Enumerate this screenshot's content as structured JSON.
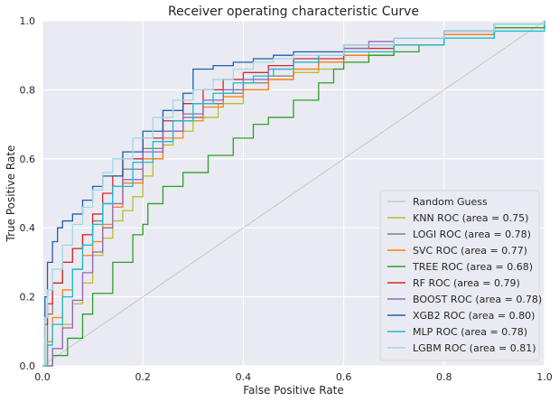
{
  "chart_data": {
    "type": "line",
    "title": "Receiver operating characteristic Curve",
    "xlabel": "False Positive Rate",
    "ylabel": "True Positive Rate",
    "xlim": [
      0,
      1
    ],
    "ylim": [
      0,
      1
    ],
    "xticks": [
      "0.0",
      "0.2",
      "0.4",
      "0.6",
      "0.8",
      "1.0"
    ],
    "yticks": [
      "0.0",
      "0.2",
      "0.4",
      "0.6",
      "0.8",
      "1.0"
    ],
    "grid": true,
    "legend_position": "lower-right",
    "background": "#eaeaf2",
    "series": [
      {
        "name": "Random Guess",
        "color": "#c8c8c8",
        "x": [
          0,
          1
        ],
        "y": [
          0,
          1
        ]
      },
      {
        "name": "KNN ROC  (area = 0.75)",
        "color": "#bcbd22",
        "x": [
          0,
          0.02,
          0.04,
          0.06,
          0.08,
          0.1,
          0.12,
          0.14,
          0.16,
          0.18,
          0.2,
          0.22,
          0.24,
          0.26,
          0.3,
          0.35,
          0.4,
          0.45,
          0.5,
          0.55,
          0.6,
          0.65,
          0.7,
          0.8,
          0.9,
          1.0
        ],
        "y": [
          0,
          0.05,
          0.12,
          0.18,
          0.24,
          0.32,
          0.37,
          0.42,
          0.45,
          0.49,
          0.55,
          0.6,
          0.64,
          0.68,
          0.72,
          0.76,
          0.8,
          0.83,
          0.85,
          0.86,
          0.88,
          0.91,
          0.93,
          0.96,
          0.98,
          1.0
        ]
      },
      {
        "name": "LOGI ROC  (area = 0.78)",
        "color": "#7f7f7f",
        "x": [
          0,
          0.01,
          0.02,
          0.04,
          0.06,
          0.08,
          0.1,
          0.12,
          0.14,
          0.16,
          0.2,
          0.24,
          0.28,
          0.32,
          0.36,
          0.4,
          0.45,
          0.5,
          0.55,
          0.6,
          0.7,
          0.8,
          0.9,
          1.0
        ],
        "y": [
          0,
          0.15,
          0.24,
          0.3,
          0.34,
          0.38,
          0.42,
          0.47,
          0.52,
          0.57,
          0.63,
          0.68,
          0.72,
          0.76,
          0.79,
          0.82,
          0.84,
          0.86,
          0.88,
          0.9,
          0.93,
          0.96,
          0.98,
          1.0
        ]
      },
      {
        "name": "SVC ROC  (area = 0.77)",
        "color": "#ff7f0e",
        "x": [
          0,
          0.01,
          0.02,
          0.04,
          0.06,
          0.08,
          0.1,
          0.12,
          0.14,
          0.16,
          0.2,
          0.24,
          0.28,
          0.32,
          0.36,
          0.4,
          0.45,
          0.5,
          0.55,
          0.6,
          0.7,
          0.8,
          0.9,
          1.0
        ],
        "y": [
          0,
          0.07,
          0.14,
          0.22,
          0.28,
          0.32,
          0.36,
          0.41,
          0.46,
          0.53,
          0.6,
          0.66,
          0.71,
          0.75,
          0.78,
          0.8,
          0.83,
          0.86,
          0.88,
          0.9,
          0.93,
          0.96,
          0.98,
          1.0
        ]
      },
      {
        "name": "TREE ROC  (area = 0.68)",
        "color": "#2ca02c",
        "x": [
          0,
          0.02,
          0.05,
          0.08,
          0.1,
          0.14,
          0.18,
          0.2,
          0.21,
          0.24,
          0.28,
          0.33,
          0.38,
          0.42,
          0.45,
          0.5,
          0.55,
          0.58,
          0.6,
          0.65,
          0.7,
          0.75,
          0.8,
          0.9,
          1.0
        ],
        "y": [
          0,
          0.03,
          0.08,
          0.15,
          0.21,
          0.3,
          0.38,
          0.41,
          0.47,
          0.52,
          0.56,
          0.61,
          0.66,
          0.7,
          0.72,
          0.77,
          0.82,
          0.86,
          0.88,
          0.9,
          0.91,
          0.93,
          0.95,
          0.98,
          1.0
        ]
      },
      {
        "name": "RF ROC  (area = 0.79)",
        "color": "#d62728",
        "x": [
          0,
          0.005,
          0.01,
          0.02,
          0.04,
          0.06,
          0.08,
          0.1,
          0.12,
          0.14,
          0.16,
          0.2,
          0.24,
          0.28,
          0.32,
          0.36,
          0.4,
          0.45,
          0.5,
          0.6,
          0.7,
          0.8,
          0.9,
          1.0
        ],
        "y": [
          0,
          0.12,
          0.18,
          0.24,
          0.3,
          0.34,
          0.38,
          0.44,
          0.5,
          0.55,
          0.6,
          0.66,
          0.71,
          0.76,
          0.8,
          0.83,
          0.85,
          0.87,
          0.89,
          0.92,
          0.95,
          0.97,
          0.99,
          1.0
        ]
      },
      {
        "name": "BOOST ROC  (area = 0.78)",
        "color": "#9467bd",
        "x": [
          0,
          0.02,
          0.04,
          0.06,
          0.08,
          0.1,
          0.12,
          0.14,
          0.16,
          0.2,
          0.24,
          0.28,
          0.32,
          0.36,
          0.4,
          0.45,
          0.5,
          0.55,
          0.6,
          0.65,
          0.7,
          0.8,
          0.9,
          1.0
        ],
        "y": [
          0,
          0.05,
          0.11,
          0.19,
          0.27,
          0.33,
          0.4,
          0.47,
          0.54,
          0.62,
          0.68,
          0.73,
          0.77,
          0.8,
          0.83,
          0.86,
          0.88,
          0.9,
          0.92,
          0.94,
          0.95,
          0.97,
          0.99,
          1.0
        ]
      },
      {
        "name": "XGB2 ROC  (area = 0.80)",
        "color": "#1f5fa8",
        "x": [
          0,
          0.005,
          0.01,
          0.02,
          0.03,
          0.04,
          0.06,
          0.08,
          0.1,
          0.12,
          0.16,
          0.2,
          0.24,
          0.28,
          0.3,
          0.34,
          0.38,
          0.42,
          0.46,
          0.5,
          0.6,
          0.7,
          0.8,
          0.9,
          1.0
        ],
        "y": [
          0,
          0.2,
          0.3,
          0.36,
          0.4,
          0.42,
          0.44,
          0.48,
          0.52,
          0.55,
          0.62,
          0.68,
          0.74,
          0.79,
          0.86,
          0.87,
          0.88,
          0.89,
          0.9,
          0.91,
          0.93,
          0.95,
          0.97,
          0.99,
          1.0
        ]
      },
      {
        "name": "MLP ROC  (area = 0.78)",
        "color": "#17becf",
        "x": [
          0,
          0.01,
          0.02,
          0.04,
          0.06,
          0.08,
          0.1,
          0.12,
          0.14,
          0.18,
          0.22,
          0.26,
          0.3,
          0.34,
          0.38,
          0.42,
          0.46,
          0.5,
          0.55,
          0.6,
          0.7,
          0.8,
          0.9,
          1.0
        ],
        "y": [
          0,
          0.06,
          0.12,
          0.2,
          0.28,
          0.35,
          0.41,
          0.47,
          0.52,
          0.59,
          0.65,
          0.71,
          0.76,
          0.79,
          0.82,
          0.84,
          0.86,
          0.88,
          0.9,
          0.91,
          0.93,
          0.95,
          0.97,
          1.0
        ]
      },
      {
        "name": "LGBM ROC  (area = 0.81)",
        "color": "#9edae5",
        "x": [
          0,
          0.005,
          0.01,
          0.02,
          0.04,
          0.06,
          0.08,
          0.1,
          0.12,
          0.14,
          0.18,
          0.22,
          0.26,
          0.3,
          0.34,
          0.38,
          0.42,
          0.46,
          0.5,
          0.6,
          0.7,
          0.8,
          0.9,
          1.0
        ],
        "y": [
          0,
          0.14,
          0.22,
          0.28,
          0.35,
          0.41,
          0.46,
          0.51,
          0.56,
          0.6,
          0.66,
          0.72,
          0.77,
          0.8,
          0.83,
          0.86,
          0.88,
          0.89,
          0.9,
          0.93,
          0.95,
          0.97,
          0.99,
          1.0
        ]
      }
    ]
  }
}
